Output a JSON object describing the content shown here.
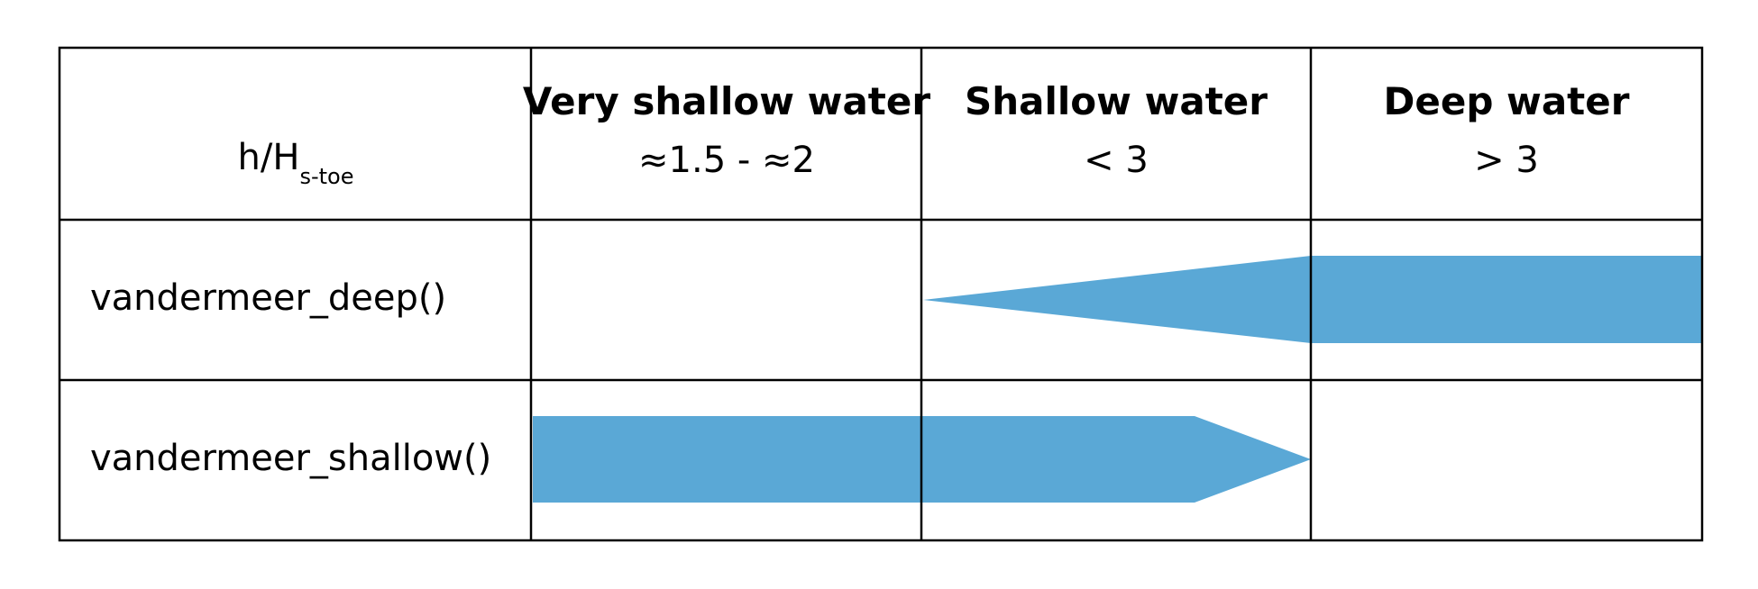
{
  "table": {
    "param_label": {
      "base": "h/H",
      "subscript": "s-toe"
    },
    "columns": [
      {
        "title": "Very shallow water",
        "range": "≈1.5 - ≈2"
      },
      {
        "title": "Shallow water",
        "range": "< 3"
      },
      {
        "title": "Deep water",
        "range": "> 3"
      }
    ],
    "rows": [
      {
        "label": "vandermeer_deep()"
      },
      {
        "label": "vandermeer_shallow()"
      }
    ]
  },
  "colors": {
    "arrow_fill": "#5aa8d6",
    "grid_line": "#000000"
  }
}
